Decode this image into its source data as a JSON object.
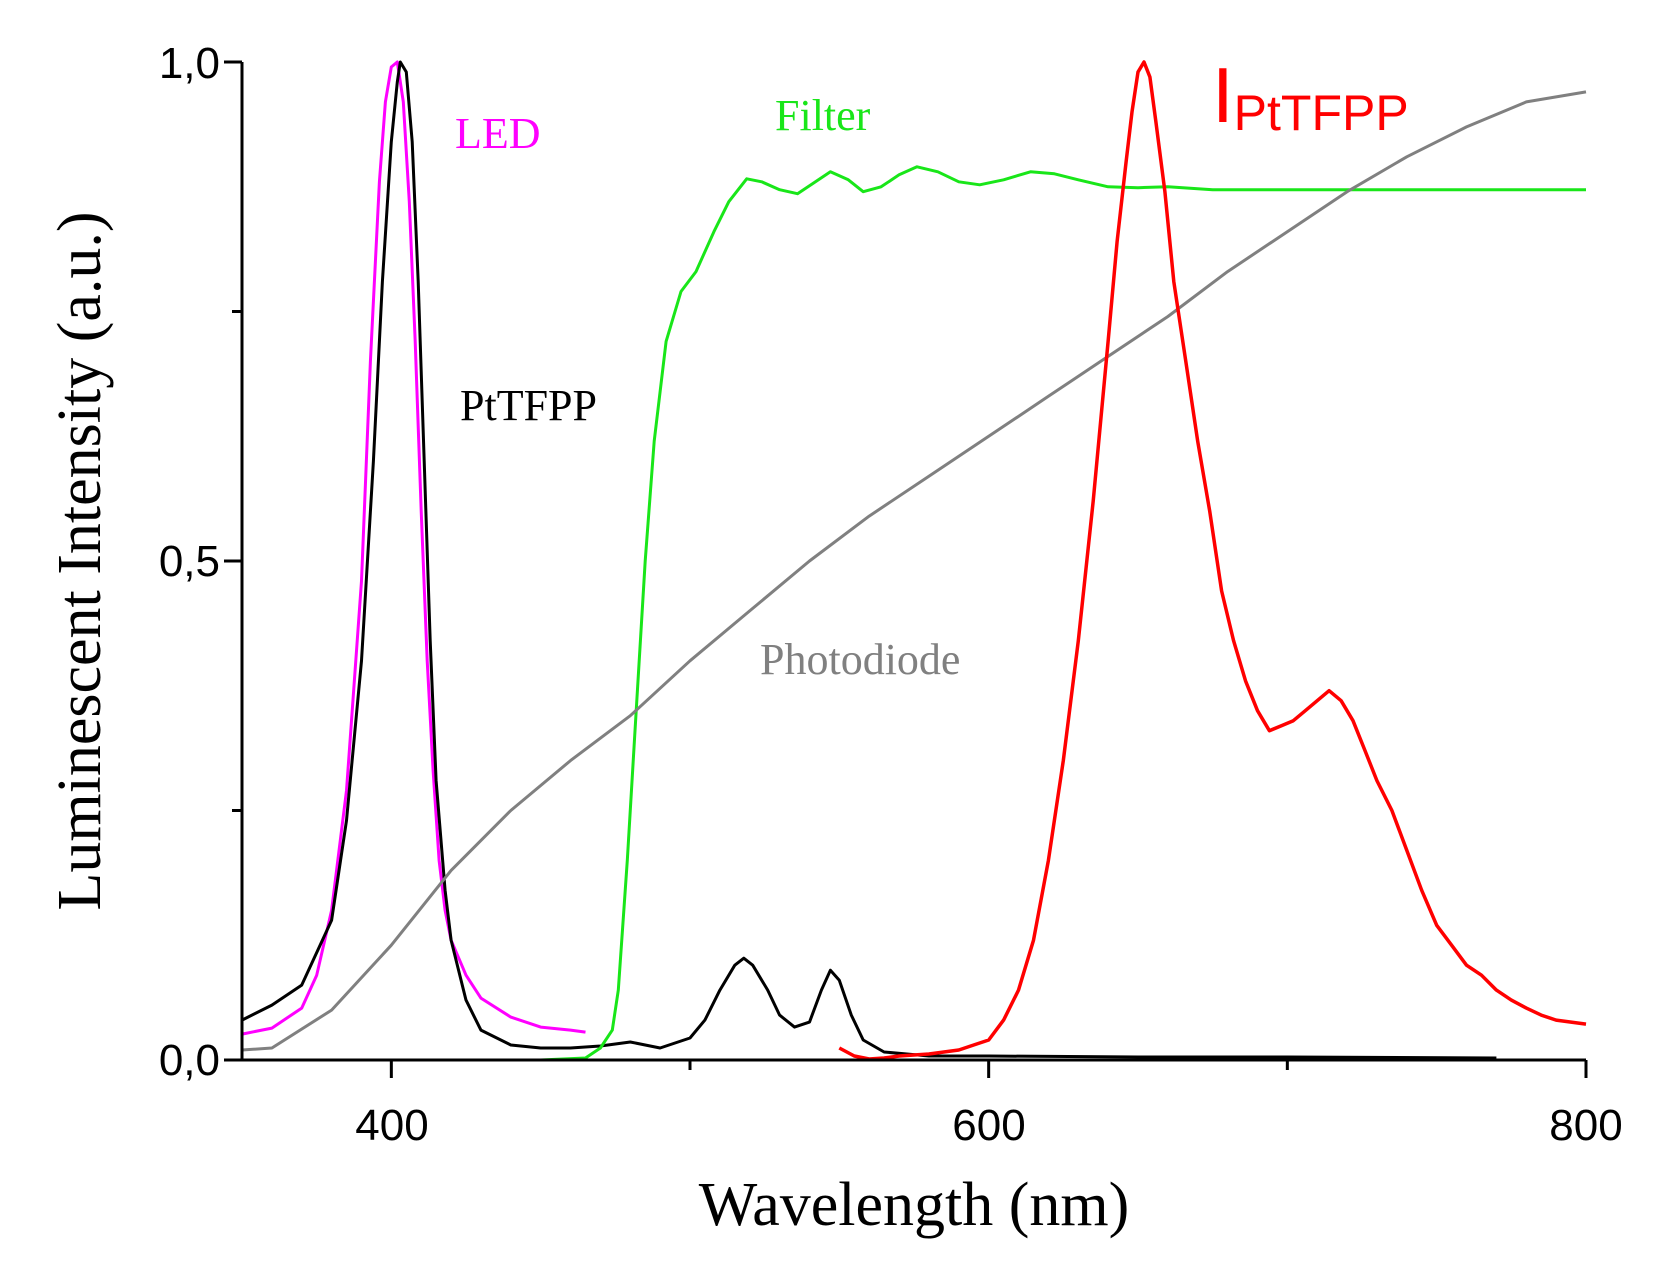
{
  "chart_data": {
    "type": "line",
    "title": "",
    "xlabel": "Wavelength (nm)",
    "ylabel": "Luminescent Intensity (a.u.)",
    "xlim": [
      350,
      800
    ],
    "ylim": [
      0,
      1.0
    ],
    "x_ticks": [
      {
        "value": 400,
        "label": "400"
      },
      {
        "value": 600,
        "label": "600"
      },
      {
        "value": 800,
        "label": "800"
      }
    ],
    "x_minor_ticks": [
      500,
      700
    ],
    "y_ticks": [
      {
        "value": 0,
        "label": "0,0"
      },
      {
        "value": 0.5,
        "label": "0,5"
      },
      {
        "value": 1.0,
        "label": "1,0"
      }
    ],
    "y_minor_ticks": [
      0.25,
      0.75
    ],
    "grid": false,
    "legend": "none",
    "series": [
      {
        "name": "LED",
        "color": "#ff00ff",
        "points": [
          [
            350,
            0.026
          ],
          [
            360,
            0.032
          ],
          [
            370,
            0.052
          ],
          [
            375,
            0.085
          ],
          [
            380,
            0.15
          ],
          [
            385,
            0.27
          ],
          [
            390,
            0.48
          ],
          [
            393,
            0.7
          ],
          [
            396,
            0.88
          ],
          [
            398,
            0.96
          ],
          [
            400,
            0.995
          ],
          [
            402,
            1.0
          ],
          [
            404,
            0.96
          ],
          [
            406,
            0.86
          ],
          [
            408,
            0.72
          ],
          [
            410,
            0.55
          ],
          [
            412,
            0.4
          ],
          [
            414,
            0.29
          ],
          [
            416,
            0.2
          ],
          [
            418,
            0.15
          ],
          [
            420,
            0.12
          ],
          [
            425,
            0.085
          ],
          [
            430,
            0.062
          ],
          [
            440,
            0.043
          ],
          [
            450,
            0.033
          ],
          [
            460,
            0.03
          ],
          [
            465,
            0.028
          ]
        ]
      },
      {
        "name": "PtTFPP",
        "color": "#000000",
        "points": [
          [
            350,
            0.04
          ],
          [
            360,
            0.055
          ],
          [
            370,
            0.075
          ],
          [
            380,
            0.14
          ],
          [
            385,
            0.24
          ],
          [
            390,
            0.4
          ],
          [
            394,
            0.6
          ],
          [
            397,
            0.78
          ],
          [
            400,
            0.92
          ],
          [
            402,
            0.98
          ],
          [
            403,
            1.0
          ],
          [
            405,
            0.99
          ],
          [
            407,
            0.92
          ],
          [
            409,
            0.78
          ],
          [
            411,
            0.6
          ],
          [
            413,
            0.42
          ],
          [
            415,
            0.28
          ],
          [
            418,
            0.17
          ],
          [
            420,
            0.12
          ],
          [
            425,
            0.06
          ],
          [
            430,
            0.03
          ],
          [
            440,
            0.015
          ],
          [
            450,
            0.012
          ],
          [
            460,
            0.012
          ],
          [
            470,
            0.014
          ],
          [
            480,
            0.018
          ],
          [
            490,
            0.012
          ],
          [
            500,
            0.022
          ],
          [
            505,
            0.04
          ],
          [
            510,
            0.07
          ],
          [
            515,
            0.095
          ],
          [
            518,
            0.102
          ],
          [
            521,
            0.095
          ],
          [
            526,
            0.07
          ],
          [
            530,
            0.045
          ],
          [
            535,
            0.033
          ],
          [
            540,
            0.038
          ],
          [
            544,
            0.07
          ],
          [
            547,
            0.09
          ],
          [
            550,
            0.08
          ],
          [
            554,
            0.045
          ],
          [
            558,
            0.02
          ],
          [
            565,
            0.008
          ],
          [
            580,
            0.004
          ],
          [
            600,
            0.004
          ],
          [
            650,
            0.003
          ],
          [
            700,
            0.003
          ],
          [
            770,
            0.002
          ]
        ]
      },
      {
        "name": "Filter",
        "color": "#19e619",
        "points": [
          [
            350,
            0.0
          ],
          [
            400,
            0.0
          ],
          [
            450,
            0.0
          ],
          [
            465,
            0.002
          ],
          [
            470,
            0.012
          ],
          [
            474,
            0.03
          ],
          [
            476,
            0.07
          ],
          [
            479,
            0.2
          ],
          [
            482,
            0.35
          ],
          [
            485,
            0.5
          ],
          [
            488,
            0.62
          ],
          [
            492,
            0.72
          ],
          [
            497,
            0.77
          ],
          [
            502,
            0.79
          ],
          [
            508,
            0.83
          ],
          [
            513,
            0.86
          ],
          [
            519,
            0.883
          ],
          [
            524,
            0.88
          ],
          [
            530,
            0.872
          ],
          [
            536,
            0.868
          ],
          [
            541,
            0.878
          ],
          [
            547,
            0.89
          ],
          [
            553,
            0.882
          ],
          [
            558,
            0.87
          ],
          [
            564,
            0.875
          ],
          [
            570,
            0.887
          ],
          [
            576,
            0.895
          ],
          [
            583,
            0.89
          ],
          [
            590,
            0.88
          ],
          [
            597,
            0.877
          ],
          [
            605,
            0.882
          ],
          [
            614,
            0.89
          ],
          [
            622,
            0.888
          ],
          [
            630,
            0.882
          ],
          [
            640,
            0.875
          ],
          [
            650,
            0.874
          ],
          [
            660,
            0.875
          ],
          [
            675,
            0.872
          ],
          [
            700,
            0.872
          ],
          [
            750,
            0.872
          ],
          [
            800,
            0.872
          ]
        ]
      },
      {
        "name": "Photodiode",
        "color": "#808080",
        "points": [
          [
            350,
            0.01
          ],
          [
            360,
            0.012
          ],
          [
            380,
            0.05
          ],
          [
            400,
            0.115
          ],
          [
            420,
            0.19
          ],
          [
            440,
            0.25
          ],
          [
            460,
            0.3
          ],
          [
            480,
            0.345
          ],
          [
            500,
            0.4
          ],
          [
            520,
            0.45
          ],
          [
            540,
            0.5
          ],
          [
            560,
            0.545
          ],
          [
            580,
            0.585
          ],
          [
            600,
            0.625
          ],
          [
            620,
            0.665
          ],
          [
            640,
            0.705
          ],
          [
            660,
            0.745
          ],
          [
            680,
            0.79
          ],
          [
            700,
            0.83
          ],
          [
            720,
            0.87
          ],
          [
            740,
            0.905
          ],
          [
            760,
            0.935
          ],
          [
            780,
            0.96
          ],
          [
            800,
            0.97
          ]
        ]
      },
      {
        "name": "I_PtTFPP",
        "color": "#ff0000",
        "points": [
          [
            550,
            0.012
          ],
          [
            555,
            0.004
          ],
          [
            560,
            0.001
          ],
          [
            565,
            0.002
          ],
          [
            570,
            0.004
          ],
          [
            575,
            0.005
          ],
          [
            580,
            0.006
          ],
          [
            585,
            0.008
          ],
          [
            590,
            0.01
          ],
          [
            595,
            0.015
          ],
          [
            600,
            0.02
          ],
          [
            605,
            0.04
          ],
          [
            610,
            0.07
          ],
          [
            615,
            0.12
          ],
          [
            620,
            0.2
          ],
          [
            625,
            0.3
          ],
          [
            630,
            0.42
          ],
          [
            635,
            0.56
          ],
          [
            640,
            0.72
          ],
          [
            643,
            0.82
          ],
          [
            646,
            0.9
          ],
          [
            648,
            0.95
          ],
          [
            650,
            0.99
          ],
          [
            652,
            1.0
          ],
          [
            654,
            0.985
          ],
          [
            656,
            0.94
          ],
          [
            659,
            0.87
          ],
          [
            662,
            0.78
          ],
          [
            666,
            0.7
          ],
          [
            670,
            0.62
          ],
          [
            674,
            0.55
          ],
          [
            678,
            0.47
          ],
          [
            682,
            0.42
          ],
          [
            686,
            0.38
          ],
          [
            690,
            0.35
          ],
          [
            694,
            0.33
          ],
          [
            698,
            0.335
          ],
          [
            702,
            0.34
          ],
          [
            706,
            0.35
          ],
          [
            710,
            0.36
          ],
          [
            714,
            0.37
          ],
          [
            718,
            0.36
          ],
          [
            722,
            0.34
          ],
          [
            726,
            0.31
          ],
          [
            730,
            0.28
          ],
          [
            735,
            0.25
          ],
          [
            740,
            0.21
          ],
          [
            745,
            0.17
          ],
          [
            750,
            0.135
          ],
          [
            755,
            0.115
          ],
          [
            760,
            0.095
          ],
          [
            765,
            0.085
          ],
          [
            770,
            0.07
          ],
          [
            775,
            0.06
          ],
          [
            780,
            0.052
          ],
          [
            785,
            0.045
          ],
          [
            790,
            0.04
          ],
          [
            795,
            0.038
          ],
          [
            800,
            0.036
          ]
        ]
      }
    ],
    "annotations": [
      {
        "text": "LED",
        "series": "LED",
        "color": "#ff00ff"
      },
      {
        "text": "Filter",
        "series": "Filter",
        "color": "#19e619"
      },
      {
        "text": "PtTFPP",
        "series": "PtTFPP",
        "color": "#000000"
      },
      {
        "text": "Photodiode",
        "series": "Photodiode",
        "color": "#808080"
      },
      {
        "text_main": "I",
        "text_sub": "PtTFPP",
        "series": "I_PtTFPP",
        "color": "#ff0000"
      }
    ]
  }
}
